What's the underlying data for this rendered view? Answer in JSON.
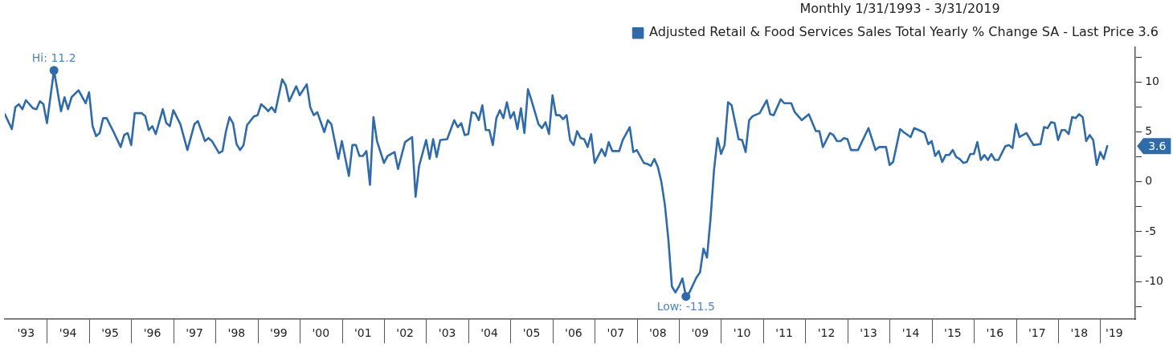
{
  "chart_data": {
    "type": "line",
    "legend_title": "Monthly 1/31/1993 - 3/31/2019",
    "legend": "top right",
    "grid": false,
    "marker": "none",
    "line_style": "solid",
    "x": [
      "1993-01",
      "1993-03",
      "1993-04",
      "1993-05",
      "1993-06",
      "1993-07",
      "1993-09",
      "1993-10",
      "1993-11",
      "1993-12",
      "1994-01",
      "1994-03",
      "1994-05",
      "1994-06",
      "1994-07",
      "1994-08",
      "1994-10",
      "1994-12",
      "1995-01",
      "1995-02",
      "1995-03",
      "1995-04",
      "1995-05",
      "1995-06",
      "1995-08",
      "1995-10",
      "1995-11",
      "1995-12",
      "1996-01",
      "1996-02",
      "1996-04",
      "1996-05",
      "1996-06",
      "1996-07",
      "1996-08",
      "1996-10",
      "1996-11",
      "1996-12",
      "1997-01",
      "1997-03",
      "1997-05",
      "1997-07",
      "1997-08",
      "1997-10",
      "1997-11",
      "1997-12",
      "1998-02",
      "1998-03",
      "1998-04",
      "1998-05",
      "1998-06",
      "1998-07",
      "1998-08",
      "1998-09",
      "1998-10",
      "1998-12",
      "1999-01",
      "1999-02",
      "1999-03",
      "1999-04",
      "1999-05",
      "1999-06",
      "1999-08",
      "1999-09",
      "1999-10",
      "1999-12",
      "2000-01",
      "2000-03",
      "2000-04",
      "2000-05",
      "2000-06",
      "2000-08",
      "2000-09",
      "2000-10",
      "2000-12",
      "2001-01",
      "2001-03",
      "2001-04",
      "2001-05",
      "2001-06",
      "2001-07",
      "2001-08",
      "2001-09",
      "2001-10",
      "2001-11",
      "2002-01",
      "2002-02",
      "2002-04",
      "2002-05",
      "2002-07",
      "2002-09",
      "2002-10",
      "2002-11",
      "2003-01",
      "2003-02",
      "2003-03",
      "2003-04",
      "2003-05",
      "2003-07",
      "2003-09",
      "2003-10",
      "2003-11",
      "2003-12",
      "2004-01",
      "2004-02",
      "2004-03",
      "2004-04",
      "2004-05",
      "2004-06",
      "2004-07",
      "2004-08",
      "2004-09",
      "2004-10",
      "2004-11",
      "2004-12",
      "2005-01",
      "2005-02",
      "2005-03",
      "2005-04",
      "2005-05",
      "2005-06",
      "2005-07",
      "2005-09",
      "2005-10",
      "2005-11",
      "2005-12",
      "2006-01",
      "2006-02",
      "2006-03",
      "2006-04",
      "2006-05",
      "2006-06",
      "2006-07",
      "2006-08",
      "2006-09",
      "2006-10",
      "2006-11",
      "2006-12",
      "2007-01",
      "2007-02",
      "2007-03",
      "2007-04",
      "2007-05",
      "2007-06",
      "2007-08",
      "2007-09",
      "2007-11",
      "2007-12",
      "2008-01",
      "2008-03",
      "2008-04",
      "2008-05",
      "2008-06",
      "2008-07",
      "2008-08",
      "2008-09",
      "2008-10",
      "2008-11",
      "2008-12",
      "2009-01",
      "2009-02",
      "2009-03",
      "2009-04",
      "2009-06",
      "2009-07",
      "2009-08",
      "2009-09",
      "2009-10",
      "2009-11",
      "2009-12",
      "2010-01",
      "2010-02",
      "2010-03",
      "2010-04",
      "2010-06",
      "2010-07",
      "2010-08",
      "2010-09",
      "2010-10",
      "2010-12",
      "2011-02",
      "2011-03",
      "2011-04",
      "2011-06",
      "2011-07",
      "2011-09",
      "2011-10",
      "2011-12",
      "2012-02",
      "2012-04",
      "2012-05",
      "2012-06",
      "2012-08",
      "2012-09",
      "2012-10",
      "2012-11",
      "2012-12",
      "2013-01",
      "2013-02",
      "2013-04",
      "2013-07",
      "2013-09",
      "2013-10",
      "2013-12",
      "2014-01",
      "2014-02",
      "2014-04",
      "2014-05",
      "2014-07",
      "2014-08",
      "2014-10",
      "2014-11",
      "2014-12",
      "2015-01",
      "2015-02",
      "2015-03",
      "2015-04",
      "2015-05",
      "2015-06",
      "2015-07",
      "2015-08",
      "2015-09",
      "2015-10",
      "2015-11",
      "2015-12",
      "2016-01",
      "2016-02",
      "2016-03",
      "2016-04",
      "2016-05",
      "2016-06",
      "2016-07",
      "2016-08",
      "2016-10",
      "2016-11",
      "2016-12",
      "2017-01",
      "2017-02",
      "2017-04",
      "2017-06",
      "2017-08",
      "2017-09",
      "2017-10",
      "2017-11",
      "2017-12",
      "2018-01",
      "2018-02",
      "2018-03",
      "2018-04",
      "2018-05",
      "2018-06",
      "2018-07",
      "2018-08",
      "2018-09",
      "2018-10",
      "2018-11",
      "2018-12",
      "2019-01",
      "2019-02",
      "2019-03"
    ],
    "series": [
      {
        "name": "Adjusted Retail & Food Services Sales Total Yearly % Change SA - Last Price 3.6",
        "color": "#2f6ba8",
        "values": [
          6.8,
          5.3,
          7.5,
          7.8,
          7.3,
          8.2,
          7.4,
          7.3,
          8.1,
          7.8,
          5.9,
          11.2,
          7.1,
          8.5,
          7.3,
          8.5,
          9.2,
          7.9,
          9.0,
          5.6,
          4.6,
          4.9,
          6.4,
          6.4,
          5.0,
          3.5,
          4.7,
          4.9,
          3.7,
          6.9,
          6.9,
          6.6,
          5.2,
          5.6,
          4.8,
          7.3,
          5.9,
          5.6,
          7.2,
          5.8,
          3.2,
          5.8,
          6.1,
          4.1,
          4.4,
          4.1,
          2.9,
          3.1,
          5.1,
          6.5,
          5.9,
          3.8,
          3.2,
          3.7,
          5.7,
          6.6,
          6.7,
          7.8,
          7.5,
          7.1,
          7.5,
          7.0,
          10.3,
          9.7,
          8.1,
          9.6,
          8.7,
          9.8,
          7.5,
          6.7,
          7.0,
          5.0,
          6.2,
          5.8,
          2.3,
          4.1,
          0.6,
          3.7,
          3.7,
          2.6,
          2.6,
          3.1,
          -0.3,
          6.5,
          4.1,
          1.9,
          2.6,
          3.0,
          1.3,
          4.0,
          4.5,
          -1.5,
          1.6,
          4.2,
          2.3,
          4.3,
          2.5,
          4.2,
          4.3,
          6.2,
          5.5,
          5.9,
          4.7,
          4.8,
          7.0,
          6.9,
          6.2,
          7.7,
          5.2,
          5.2,
          3.7,
          6.4,
          7.2,
          6.4,
          8.0,
          6.4,
          7.0,
          5.3,
          7.4,
          4.9,
          9.3,
          8.2,
          5.8,
          5.4,
          6.0,
          4.8,
          8.7,
          6.7,
          6.7,
          6.3,
          6.7,
          4.2,
          3.7,
          5.1,
          4.4,
          4.3,
          3.5,
          4.8,
          1.9,
          2.6,
          3.3,
          2.6,
          4.0,
          3.1,
          3.1,
          4.2,
          5.5,
          3.0,
          3.2,
          1.9,
          1.8,
          1.6,
          2.3,
          1.5,
          0.0,
          -2.3,
          -5.8,
          -10.5,
          -11.1,
          -10.5,
          -9.7,
          -11.5,
          -11.1,
          -9.6,
          -9.1,
          -6.7,
          -7.6,
          -3.7,
          1.2,
          4.4,
          2.8,
          3.7,
          8.0,
          7.7,
          4.3,
          4.2,
          3.0,
          6.2,
          6.6,
          6.9,
          8.2,
          6.8,
          6.7,
          8.3,
          7.9,
          7.9,
          7.0,
          6.2,
          6.8,
          5.1,
          5.1,
          3.5,
          4.9,
          4.7,
          4.1,
          4.1,
          4.4,
          4.3,
          3.2,
          3.2,
          5.4,
          3.2,
          3.5,
          3.5,
          1.7,
          2.0,
          5.3,
          5.0,
          4.5,
          5.4,
          5.1,
          4.9,
          3.8,
          4.1,
          2.6,
          3.1,
          2.0,
          2.7,
          2.7,
          3.2,
          2.5,
          2.3,
          1.9,
          2.0,
          2.8,
          2.8,
          4.0,
          2.2,
          2.7,
          2.2,
          2.8,
          2.2,
          2.2,
          3.6,
          3.7,
          3.4,
          5.8,
          4.5,
          4.9,
          3.7,
          3.8,
          5.5,
          5.4,
          6.0,
          5.9,
          4.2,
          5.2,
          5.2,
          4.8,
          6.5,
          6.4,
          6.8,
          6.5,
          4.1,
          4.7,
          4.2,
          1.7,
          3.0,
          2.3,
          3.6
        ]
      }
    ],
    "xlim": [
      "1993-01",
      "2019-11"
    ],
    "xticks": [
      {
        "value": "1993-07",
        "label": "'93"
      },
      {
        "value": "1994-07",
        "label": "'94"
      },
      {
        "value": "1995-07",
        "label": "'95"
      },
      {
        "value": "1996-07",
        "label": "'96"
      },
      {
        "value": "1997-07",
        "label": "'97"
      },
      {
        "value": "1998-07",
        "label": "'98"
      },
      {
        "value": "1999-07",
        "label": "'99"
      },
      {
        "value": "2000-07",
        "label": "'00"
      },
      {
        "value": "2001-07",
        "label": "'01"
      },
      {
        "value": "2002-07",
        "label": "'02"
      },
      {
        "value": "2003-07",
        "label": "'03"
      },
      {
        "value": "2004-07",
        "label": "'04"
      },
      {
        "value": "2005-07",
        "label": "'05"
      },
      {
        "value": "2006-07",
        "label": "'06"
      },
      {
        "value": "2007-07",
        "label": "'07"
      },
      {
        "value": "2008-07",
        "label": "'08"
      },
      {
        "value": "2009-07",
        "label": "'09"
      },
      {
        "value": "2010-07",
        "label": "'10"
      },
      {
        "value": "2011-07",
        "label": "'11"
      },
      {
        "value": "2012-07",
        "label": "'12"
      },
      {
        "value": "2013-07",
        "label": "'13"
      },
      {
        "value": "2014-07",
        "label": "'14"
      },
      {
        "value": "2015-07",
        "label": "'15"
      },
      {
        "value": "2016-07",
        "label": "'16"
      },
      {
        "value": "2017-07",
        "label": "'17"
      },
      {
        "value": "2018-07",
        "label": "'18"
      },
      {
        "value": "2019-05",
        "label": "'19"
      }
    ],
    "ylim": [
      -13.8,
      13.5
    ],
    "yticks": [
      {
        "value": -12.5,
        "label": null
      },
      -10,
      {
        "value": -7.5,
        "label": null
      },
      -5,
      {
        "value": -2.5,
        "label": null
      },
      0,
      {
        "value": 2.5,
        "label": null
      },
      5,
      {
        "value": 7.5,
        "label": null
      },
      10,
      {
        "value": 12.5,
        "label": null
      }
    ],
    "annotations": [
      {
        "text": "Hi: 11.2",
        "x": "1994-03",
        "y": 11.2
      },
      {
        "text": "Low: -11.5",
        "x": "2009-03",
        "y": -11.5
      },
      "3.6"
    ]
  }
}
